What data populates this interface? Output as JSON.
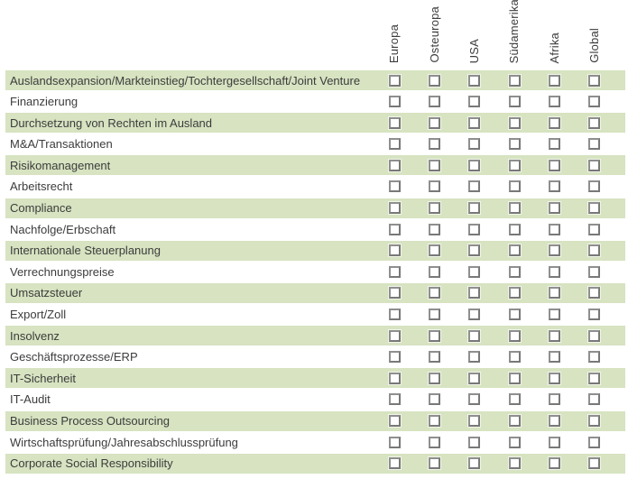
{
  "table": {
    "columns": [
      "Europa",
      "Osteuropa",
      "USA",
      "Südamerika",
      "Afrika",
      "Global"
    ],
    "rows": [
      {
        "label": "Auslandsexpansion/Markteinstieg/Tochtergesellschaft/Joint Venture",
        "checkboxes": [
          false,
          false,
          false,
          false,
          false,
          false
        ]
      },
      {
        "label": "Finanzierung",
        "checkboxes": [
          false,
          false,
          false,
          false,
          false,
          false
        ]
      },
      {
        "label": "Durchsetzung von Rechten im Ausland",
        "checkboxes": [
          false,
          false,
          false,
          false,
          false,
          false
        ]
      },
      {
        "label": "M&A/Transaktionen",
        "checkboxes": [
          false,
          false,
          false,
          false,
          false,
          false
        ]
      },
      {
        "label": "Risikomanagement",
        "checkboxes": [
          false,
          false,
          false,
          false,
          false,
          false
        ]
      },
      {
        "label": "Arbeitsrecht",
        "checkboxes": [
          false,
          false,
          false,
          false,
          false,
          false
        ]
      },
      {
        "label": "Compliance",
        "checkboxes": [
          false,
          false,
          false,
          false,
          false,
          false
        ]
      },
      {
        "label": "Nachfolge/Erbschaft",
        "checkboxes": [
          false,
          false,
          false,
          false,
          false,
          false
        ]
      },
      {
        "label": "Internationale Steuerplanung",
        "checkboxes": [
          false,
          false,
          false,
          false,
          false,
          false
        ]
      },
      {
        "label": "Verrechnungspreise",
        "checkboxes": [
          false,
          false,
          false,
          false,
          false,
          false
        ]
      },
      {
        "label": "Umsatzsteuer",
        "checkboxes": [
          false,
          false,
          false,
          false,
          false,
          false
        ]
      },
      {
        "label": "Export/Zoll",
        "checkboxes": [
          false,
          false,
          false,
          false,
          false,
          false
        ]
      },
      {
        "label": "Insolvenz",
        "checkboxes": [
          false,
          false,
          false,
          false,
          false,
          false
        ]
      },
      {
        "label": "Geschäftsprozesse/ERP",
        "checkboxes": [
          false,
          false,
          false,
          false,
          false,
          false
        ]
      },
      {
        "label": "IT-Sicherheit",
        "checkboxes": [
          false,
          false,
          false,
          false,
          false,
          false
        ]
      },
      {
        "label": "IT-Audit",
        "checkboxes": [
          false,
          false,
          false,
          false,
          false,
          false
        ]
      },
      {
        "label": "Business Process Outsourcing",
        "checkboxes": [
          false,
          false,
          false,
          false,
          false,
          false
        ]
      },
      {
        "label": "Wirtschaftsprüfung/Jahresabschlussprüfung",
        "checkboxes": [
          false,
          false,
          false,
          false,
          false,
          false
        ]
      },
      {
        "label": "Corporate Social Responsibility",
        "checkboxes": [
          false,
          false,
          false,
          false,
          false,
          false
        ]
      }
    ],
    "zebra_pattern": "odd-numbered rows green starting with first row"
  },
  "colors": {
    "row_green": "#d7e3c1",
    "background": "#ffffff",
    "text": "#3c3c3c",
    "checkbox_border": "#787878"
  }
}
